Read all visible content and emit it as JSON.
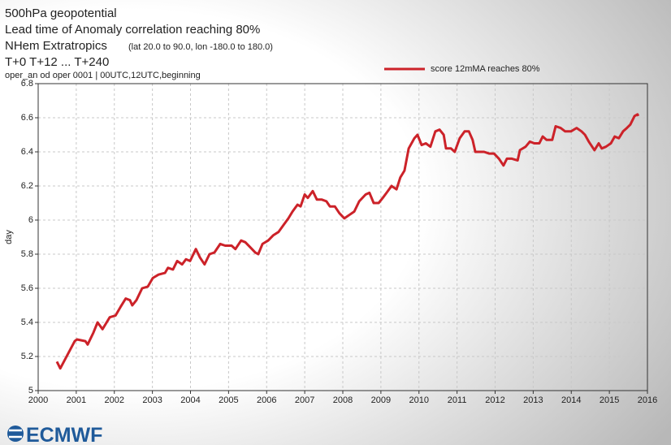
{
  "chart_data": {
    "type": "line",
    "title_lines": [
      "500hPa geopotential",
      "Lead time of Anomaly correlation reaching 80%",
      "NHem Extratropics",
      "T+0 T+12 ... T+240"
    ],
    "region_note": "(lat  20.0 to 90.0, lon  -180.0 to  180.0)",
    "subtitle": "oper_an od oper 0001 | 00UTC,12UTC,beginning",
    "ylabel": "day",
    "logo": "ECMWF",
    "xlim": [
      2000,
      2016
    ],
    "xticks": [
      2000,
      2001,
      2002,
      2003,
      2004,
      2005,
      2006,
      2007,
      2008,
      2009,
      2010,
      2011,
      2012,
      2013,
      2014,
      2015,
      2016
    ],
    "ylim": [
      5,
      6.8
    ],
    "yticks": [
      5,
      5.2,
      5.4,
      5.6,
      5.8,
      6,
      6.2,
      6.4,
      6.6,
      6.8
    ],
    "grid": true,
    "x": [
      2000.49,
      2000.58,
      2000.96,
      2001.02,
      2001.24,
      2001.3,
      2001.45,
      2001.56,
      2001.69,
      2001.77,
      2001.88,
      2002.03,
      2002.16,
      2002.3,
      2002.41,
      2002.47,
      2002.58,
      2002.73,
      2002.88,
      2003.01,
      2003.16,
      2003.33,
      2003.41,
      2003.54,
      2003.65,
      2003.78,
      2003.88,
      2003.99,
      2004.14,
      2004.25,
      2004.37,
      2004.5,
      2004.63,
      2004.78,
      2004.91,
      2005.08,
      2005.18,
      2005.33,
      2005.44,
      2005.57,
      2005.7,
      2005.78,
      2005.89,
      2006.04,
      2006.17,
      2006.31,
      2006.44,
      2006.57,
      2006.68,
      2006.81,
      2006.89,
      2007.0,
      2007.08,
      2007.21,
      2007.32,
      2007.45,
      2007.57,
      2007.66,
      2007.79,
      2007.91,
      2008.04,
      2008.17,
      2008.3,
      2008.43,
      2008.6,
      2008.7,
      2008.81,
      2008.94,
      2009.05,
      2009.15,
      2009.28,
      2009.41,
      2009.51,
      2009.62,
      2009.73,
      2009.88,
      2009.96,
      2010.07,
      2010.18,
      2010.3,
      2010.43,
      2010.54,
      2010.65,
      2010.71,
      2010.84,
      2010.94,
      2011.07,
      2011.2,
      2011.31,
      2011.41,
      2011.48,
      2011.58,
      2011.71,
      2011.84,
      2011.97,
      2012.1,
      2012.22,
      2012.31,
      2012.44,
      2012.59,
      2012.65,
      2012.8,
      2012.91,
      2013.03,
      2013.16,
      2013.25,
      2013.35,
      2013.5,
      2013.59,
      2013.72,
      2013.84,
      2013.99,
      2014.14,
      2014.27,
      2014.36,
      2014.46,
      2014.61,
      2014.72,
      2014.8,
      2014.91,
      2015.04,
      2015.14,
      2015.25,
      2015.36,
      2015.46,
      2015.55,
      2015.66,
      2015.74,
      2015.76
    ],
    "legend": "top-right",
    "series": [
      {
        "name": "score 12mMA reaches 80%",
        "color": "#cc2229",
        "values": [
          5.17,
          5.13,
          5.29,
          5.3,
          5.29,
          5.27,
          5.34,
          5.4,
          5.36,
          5.39,
          5.43,
          5.44,
          5.49,
          5.54,
          5.53,
          5.5,
          5.53,
          5.6,
          5.61,
          5.66,
          5.68,
          5.69,
          5.72,
          5.71,
          5.76,
          5.74,
          5.77,
          5.76,
          5.83,
          5.78,
          5.74,
          5.8,
          5.81,
          5.86,
          5.85,
          5.85,
          5.83,
          5.88,
          5.87,
          5.84,
          5.81,
          5.8,
          5.86,
          5.88,
          5.91,
          5.93,
          5.97,
          6.01,
          6.05,
          6.09,
          6.08,
          6.15,
          6.13,
          6.17,
          6.12,
          6.12,
          6.11,
          6.08,
          6.08,
          6.04,
          6.01,
          6.03,
          6.05,
          6.11,
          6.15,
          6.16,
          6.1,
          6.1,
          6.13,
          6.16,
          6.2,
          6.18,
          6.25,
          6.29,
          6.42,
          6.48,
          6.5,
          6.44,
          6.45,
          6.43,
          6.52,
          6.53,
          6.5,
          6.42,
          6.42,
          6.4,
          6.48,
          6.52,
          6.52,
          6.47,
          6.4,
          6.4,
          6.4,
          6.39,
          6.39,
          6.36,
          6.32,
          6.36,
          6.36,
          6.35,
          6.41,
          6.43,
          6.46,
          6.45,
          6.45,
          6.49,
          6.47,
          6.47,
          6.55,
          6.54,
          6.52,
          6.52,
          6.54,
          6.52,
          6.5,
          6.46,
          6.41,
          6.45,
          6.42,
          6.43,
          6.45,
          6.49,
          6.48,
          6.52,
          6.54,
          6.56,
          6.61,
          6.62,
          6.61
        ]
      }
    ]
  }
}
